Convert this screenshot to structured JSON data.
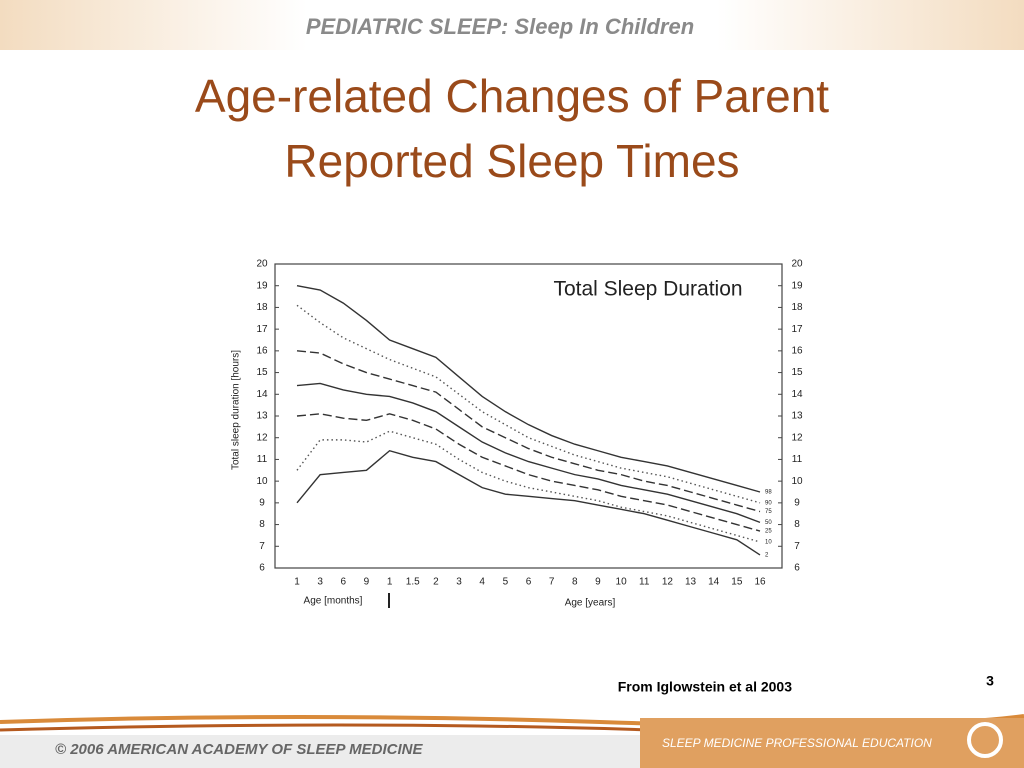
{
  "header": {
    "text": "PEDIATRIC SLEEP: Sleep In Children"
  },
  "title": [
    "Age-related Changes of Parent",
    "Reported Sleep Times"
  ],
  "chart_data": {
    "type": "line",
    "title": "Total Sleep Duration",
    "y_label": "Total sleep duration [hours]",
    "x_group_labels": [
      "Age [months]",
      "Age [years]"
    ],
    "categories": [
      "1",
      "3",
      "6",
      "9",
      "1",
      "1.5",
      "2",
      "3",
      "4",
      "5",
      "6",
      "7",
      "8",
      "9",
      "10",
      "11",
      "12",
      "13",
      "14",
      "15",
      "16"
    ],
    "ylim": [
      6,
      20
    ],
    "yticks": [
      6,
      7,
      8,
      9,
      10,
      11,
      12,
      13,
      14,
      15,
      16,
      17,
      18,
      19,
      20
    ],
    "series": [
      {
        "name": "98",
        "color": "#333333",
        "style": "solid",
        "values": [
          19.0,
          18.8,
          18.2,
          17.4,
          16.5,
          16.1,
          15.7,
          14.8,
          13.9,
          13.2,
          12.6,
          12.1,
          11.7,
          11.4,
          11.1,
          10.9,
          10.7,
          10.4,
          10.1,
          9.8,
          9.5
        ]
      },
      {
        "name": "90",
        "color": "#555555",
        "style": "dotted",
        "values": [
          18.1,
          17.3,
          16.6,
          16.1,
          15.6,
          15.2,
          14.8,
          14.0,
          13.2,
          12.6,
          12.0,
          11.6,
          11.2,
          10.9,
          10.6,
          10.4,
          10.2,
          9.9,
          9.6,
          9.3,
          9.0
        ]
      },
      {
        "name": "75",
        "color": "#333333",
        "style": "dashed",
        "values": [
          16.0,
          15.9,
          15.4,
          15.0,
          14.7,
          14.4,
          14.1,
          13.3,
          12.5,
          12.0,
          11.5,
          11.1,
          10.8,
          10.5,
          10.3,
          10.0,
          9.8,
          9.5,
          9.2,
          8.9,
          8.6
        ]
      },
      {
        "name": "50",
        "color": "#333333",
        "style": "solid",
        "values": [
          14.4,
          14.5,
          14.2,
          14.0,
          13.9,
          13.6,
          13.2,
          12.5,
          11.8,
          11.3,
          10.9,
          10.6,
          10.3,
          10.1,
          9.8,
          9.6,
          9.4,
          9.1,
          8.8,
          8.5,
          8.1
        ]
      },
      {
        "name": "25",
        "color": "#333333",
        "style": "dashed",
        "values": [
          13.0,
          13.1,
          12.9,
          12.8,
          13.1,
          12.8,
          12.4,
          11.7,
          11.1,
          10.7,
          10.3,
          10.0,
          9.8,
          9.6,
          9.3,
          9.1,
          8.9,
          8.6,
          8.3,
          8.0,
          7.7
        ]
      },
      {
        "name": "10",
        "color": "#555555",
        "style": "dotted",
        "values": [
          10.5,
          11.9,
          11.9,
          11.8,
          12.3,
          12.0,
          11.7,
          11.0,
          10.4,
          10.0,
          9.7,
          9.5,
          9.3,
          9.1,
          8.8,
          8.6,
          8.4,
          8.1,
          7.8,
          7.5,
          7.2
        ]
      },
      {
        "name": "2",
        "color": "#333333",
        "style": "solid",
        "values": [
          9.0,
          10.3,
          10.4,
          10.5,
          11.4,
          11.1,
          10.9,
          10.3,
          9.7,
          9.4,
          9.3,
          9.2,
          9.1,
          8.9,
          8.7,
          8.5,
          8.2,
          7.9,
          7.6,
          7.3,
          6.6
        ]
      }
    ]
  },
  "source": "From Iglowstein et al 2003",
  "page_number": "3",
  "footer": {
    "left": "© 2006 AMERICAN ACADEMY OF SLEEP MEDICINE",
    "right": "SLEEP MEDICINE PROFESSIONAL EDUCATION"
  }
}
